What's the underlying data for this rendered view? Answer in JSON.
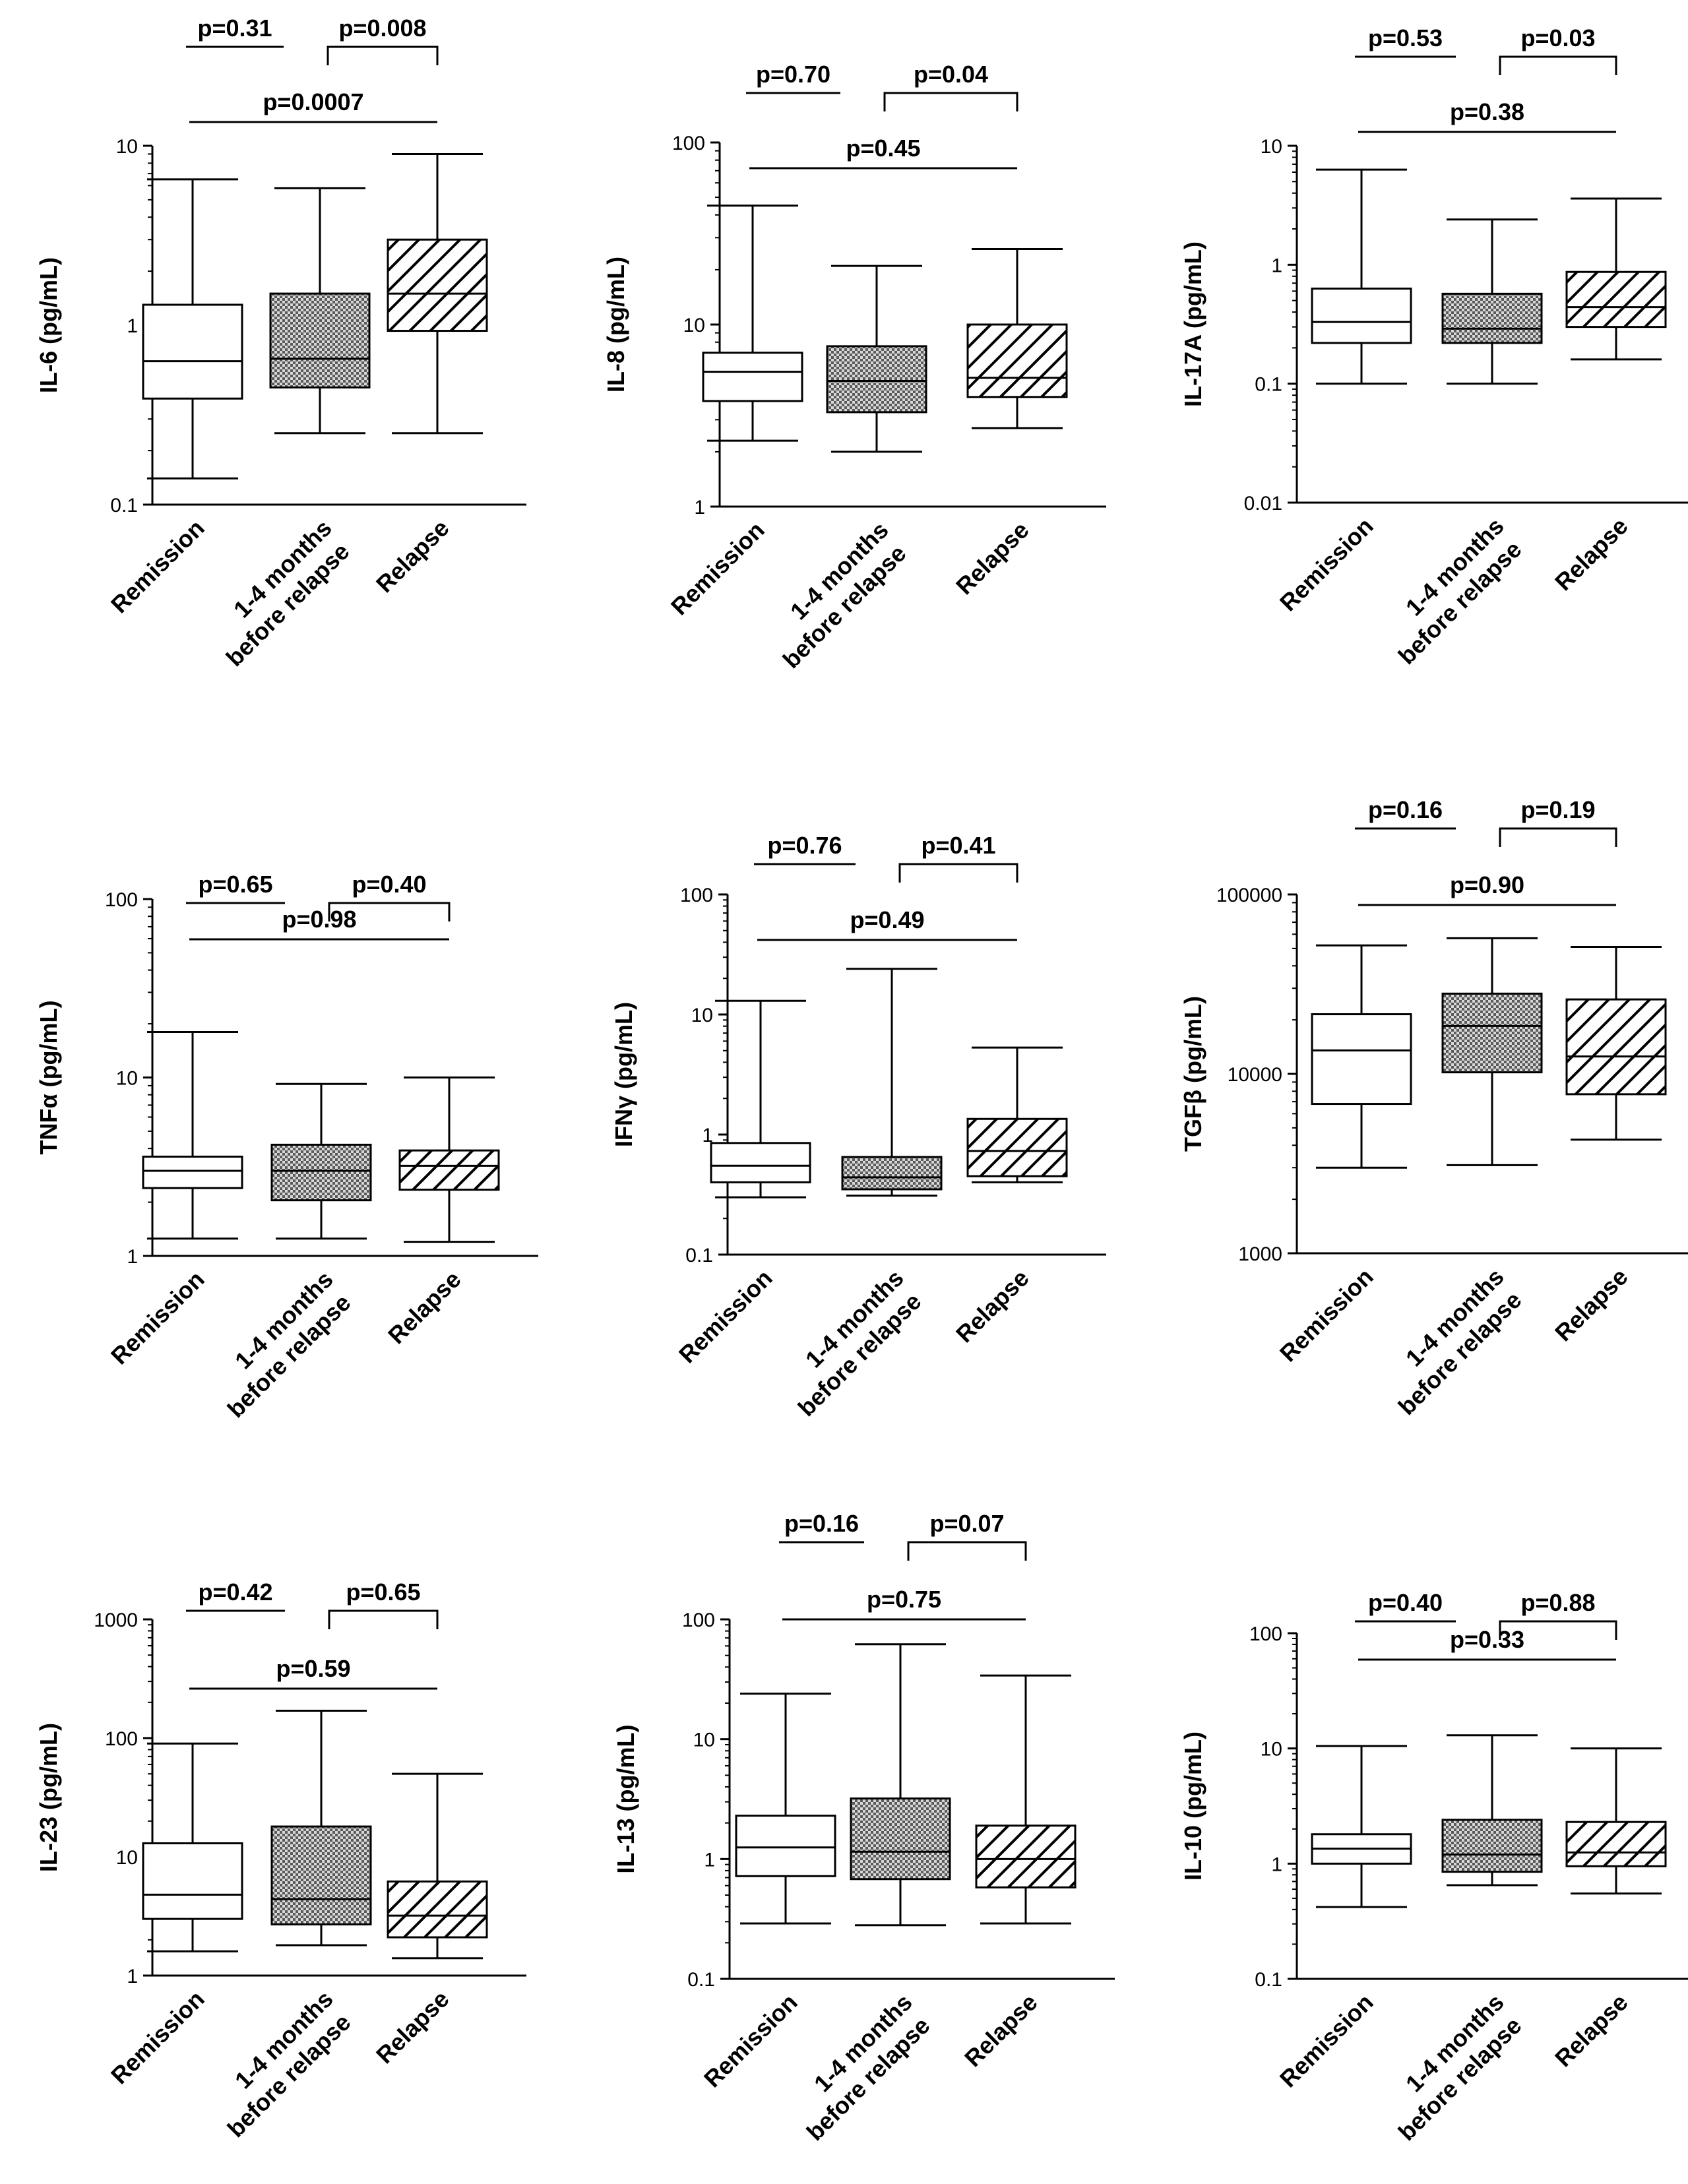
{
  "chart_data": [
    {
      "type": "box",
      "scale": "log",
      "ylabel": "IL-6 (pg/mL)",
      "ylim": [
        0.1,
        10
      ],
      "yticks": [
        "0.1",
        "1",
        "10"
      ],
      "categories": [
        "Remission",
        "1-4 months before relapse",
        "Relapse"
      ],
      "category_lines": [
        [
          "Remission"
        ],
        [
          "1-4 months",
          "before relapse"
        ],
        [
          "Relapse"
        ]
      ],
      "series": [
        {
          "name": "Remission",
          "pattern": "none",
          "min": 0.14,
          "q1": 0.39,
          "median": 0.63,
          "q3": 1.3,
          "max": 6.5
        },
        {
          "name": "1-4 months before relapse",
          "pattern": "checker",
          "min": 0.25,
          "q1": 0.45,
          "median": 0.65,
          "q3": 1.5,
          "max": 5.8
        },
        {
          "name": "Relapse",
          "pattern": "hatch",
          "min": 0.25,
          "q1": 0.93,
          "median": 1.5,
          "q3": 3.0,
          "max": 9.0
        }
      ],
      "comparisons": [
        {
          "label": "p=0.31",
          "from": 0,
          "to": 1
        },
        {
          "label": "p=0.008",
          "from": 1,
          "to": 2
        },
        {
          "label": "p=0.0007",
          "from": 0,
          "to": 2
        }
      ]
    },
    {
      "type": "box",
      "scale": "log",
      "ylabel": "IL-8 (pg/mL)",
      "ylim": [
        1,
        100
      ],
      "yticks": [
        "1",
        "10",
        "100"
      ],
      "categories": [
        "Remission",
        "1-4 months before relapse",
        "Relapse"
      ],
      "category_lines": [
        [
          "Remission"
        ],
        [
          "1-4 months",
          "before relapse"
        ],
        [
          "Relapse"
        ]
      ],
      "series": [
        {
          "name": "Remission",
          "pattern": "none",
          "min": 2.3,
          "q1": 3.8,
          "median": 5.5,
          "q3": 7.0,
          "max": 45
        },
        {
          "name": "1-4 months before relapse",
          "pattern": "checker",
          "min": 2.0,
          "q1": 3.3,
          "median": 4.9,
          "q3": 7.6,
          "max": 21
        },
        {
          "name": "Relapse",
          "pattern": "hatch",
          "min": 2.7,
          "q1": 4.0,
          "median": 5.1,
          "q3": 10,
          "max": 26
        }
      ],
      "comparisons": [
        {
          "label": "p=0.70",
          "from": 0,
          "to": 1
        },
        {
          "label": "p=0.04",
          "from": 1,
          "to": 2
        },
        {
          "label": "p=0.45",
          "from": 0,
          "to": 2
        }
      ]
    },
    {
      "type": "box",
      "scale": "log",
      "ylabel": "IL-17A (pg/mL)",
      "ylim": [
        0.01,
        10
      ],
      "yticks": [
        "0.01",
        "0.1",
        "1",
        "10"
      ],
      "categories": [
        "Remission",
        "1-4 months before relapse",
        "Relapse"
      ],
      "category_lines": [
        [
          "Remission"
        ],
        [
          "1-4 months",
          "before relapse"
        ],
        [
          "Relapse"
        ]
      ],
      "series": [
        {
          "name": "Remission",
          "pattern": "none",
          "min": 0.1,
          "q1": 0.22,
          "median": 0.33,
          "q3": 0.63,
          "max": 6.3
        },
        {
          "name": "1-4 months before relapse",
          "pattern": "checker",
          "min": 0.1,
          "q1": 0.22,
          "median": 0.29,
          "q3": 0.57,
          "max": 2.4
        },
        {
          "name": "Relapse",
          "pattern": "hatch",
          "min": 0.16,
          "q1": 0.3,
          "median": 0.44,
          "q3": 0.87,
          "max": 3.6
        }
      ],
      "comparisons": [
        {
          "label": "p=0.53",
          "from": 0,
          "to": 1
        },
        {
          "label": "p=0.03",
          "from": 1,
          "to": 2
        },
        {
          "label": "p=0.38",
          "from": 0,
          "to": 2
        }
      ]
    },
    {
      "type": "box",
      "scale": "log",
      "ylabel": "TNFα (pg/mL)",
      "ylim": [
        1,
        100
      ],
      "yticks": [
        "1",
        "10",
        "100"
      ],
      "categories": [
        "Remission",
        "1-4 months before relapse",
        "Relapse"
      ],
      "category_lines": [
        [
          "Remission"
        ],
        [
          "1-4 months",
          "before relapse"
        ],
        [
          "Relapse"
        ]
      ],
      "series": [
        {
          "name": "Remission",
          "pattern": "none",
          "min": 1.25,
          "q1": 2.4,
          "median": 3.0,
          "q3": 3.6,
          "max": 18
        },
        {
          "name": "1-4 months before relapse",
          "pattern": "checker",
          "min": 1.25,
          "q1": 2.05,
          "median": 3.0,
          "q3": 4.2,
          "max": 9.2
        },
        {
          "name": "Relapse",
          "pattern": "hatch",
          "min": 1.2,
          "q1": 2.35,
          "median": 3.2,
          "q3": 3.9,
          "max": 10
        }
      ],
      "comparisons": [
        {
          "label": "p=0.65",
          "from": 0,
          "to": 1
        },
        {
          "label": "p=0.40",
          "from": 1,
          "to": 2
        },
        {
          "label": "p=0.98",
          "from": 0,
          "to": 2
        }
      ]
    },
    {
      "type": "box",
      "scale": "log",
      "ylabel": "IFNγ (pg/mL)",
      "ylim": [
        0.1,
        100
      ],
      "yticks": [
        "0.1",
        "1",
        "10",
        "100"
      ],
      "categories": [
        "Remission",
        "1-4 months before relapse",
        "Relapse"
      ],
      "category_lines": [
        [
          "Remission"
        ],
        [
          "1-4 months",
          "before relapse"
        ],
        [
          "Relapse"
        ]
      ],
      "series": [
        {
          "name": "Remission",
          "pattern": "none",
          "min": 0.3,
          "q1": 0.4,
          "median": 0.55,
          "q3": 0.85,
          "max": 13
        },
        {
          "name": "1-4 months before relapse",
          "pattern": "checker",
          "min": 0.31,
          "q1": 0.35,
          "median": 0.44,
          "q3": 0.65,
          "max": 24
        },
        {
          "name": "Relapse",
          "pattern": "hatch",
          "min": 0.4,
          "q1": 0.45,
          "median": 0.73,
          "q3": 1.35,
          "max": 5.3
        }
      ],
      "comparisons": [
        {
          "label": "p=0.76",
          "from": 0,
          "to": 1
        },
        {
          "label": "p=0.41",
          "from": 1,
          "to": 2
        },
        {
          "label": "p=0.49",
          "from": 0,
          "to": 2
        }
      ]
    },
    {
      "type": "box",
      "scale": "log",
      "ylabel": "TGFβ (pg/mL)",
      "ylim": [
        1000,
        100000
      ],
      "yticks": [
        "1000",
        "10000",
        "100000"
      ],
      "categories": [
        "Remission",
        "1-4 months before relapse",
        "Relapse"
      ],
      "category_lines": [
        [
          "Remission"
        ],
        [
          "1-4 months",
          "before relapse"
        ],
        [
          "Relapse"
        ]
      ],
      "series": [
        {
          "name": "Remission",
          "pattern": "none",
          "min": 3000,
          "q1": 6800,
          "median": 13500,
          "q3": 21500,
          "max": 52000
        },
        {
          "name": "1-4 months before relapse",
          "pattern": "checker",
          "min": 3100,
          "q1": 10200,
          "median": 18500,
          "q3": 28000,
          "max": 57000
        },
        {
          "name": "Relapse",
          "pattern": "hatch",
          "min": 4300,
          "q1": 7700,
          "median": 12500,
          "q3": 26000,
          "max": 51000
        }
      ],
      "comparisons": [
        {
          "label": "p=0.16",
          "from": 0,
          "to": 1
        },
        {
          "label": "p=0.19",
          "from": 1,
          "to": 2
        },
        {
          "label": "p=0.90",
          "from": 0,
          "to": 2
        }
      ]
    },
    {
      "type": "box",
      "scale": "log",
      "ylabel": "IL-23 (pg/mL)",
      "ylim": [
        1,
        1000
      ],
      "yticks": [
        "1",
        "10",
        "100",
        "1000"
      ],
      "categories": [
        "Remission",
        "1-4 months before relapse",
        "Relapse"
      ],
      "category_lines": [
        [
          "Remission"
        ],
        [
          "1-4 months",
          "before relapse"
        ],
        [
          "Relapse"
        ]
      ],
      "series": [
        {
          "name": "Remission",
          "pattern": "none",
          "min": 1.6,
          "q1": 3.0,
          "median": 4.8,
          "q3": 13,
          "max": 90
        },
        {
          "name": "1-4 months before relapse",
          "pattern": "checker",
          "min": 1.8,
          "q1": 2.7,
          "median": 4.4,
          "q3": 18,
          "max": 170
        },
        {
          "name": "Relapse",
          "pattern": "hatch",
          "min": 1.4,
          "q1": 2.1,
          "median": 3.2,
          "q3": 6.2,
          "max": 50
        }
      ],
      "comparisons": [
        {
          "label": "p=0.42",
          "from": 0,
          "to": 1
        },
        {
          "label": "p=0.65",
          "from": 1,
          "to": 2
        },
        {
          "label": "p=0.59",
          "from": 0,
          "to": 2
        }
      ]
    },
    {
      "type": "box",
      "scale": "log",
      "ylabel": "IL-13 (pg/mL)",
      "ylim": [
        0.1,
        100
      ],
      "yticks": [
        "0.1",
        "1",
        "10",
        "100"
      ],
      "categories": [
        "Remission",
        "1-4 months before relapse",
        "Relapse"
      ],
      "category_lines": [
        [
          "Remission"
        ],
        [
          "1-4 months",
          "before relapse"
        ],
        [
          "Relapse"
        ]
      ],
      "series": [
        {
          "name": "Remission",
          "pattern": "none",
          "min": 0.29,
          "q1": 0.72,
          "median": 1.25,
          "q3": 2.3,
          "max": 24
        },
        {
          "name": "1-4 months before relapse",
          "pattern": "checker",
          "min": 0.28,
          "q1": 0.68,
          "median": 1.15,
          "q3": 3.2,
          "max": 62
        },
        {
          "name": "Relapse",
          "pattern": "hatch",
          "min": 0.29,
          "q1": 0.58,
          "median": 1.0,
          "q3": 1.9,
          "max": 34
        }
      ],
      "comparisons": [
        {
          "label": "p=0.16",
          "from": 0,
          "to": 1
        },
        {
          "label": "p=0.07",
          "from": 1,
          "to": 2
        },
        {
          "label": "p=0.75",
          "from": 0,
          "to": 2
        }
      ]
    },
    {
      "type": "box",
      "scale": "log",
      "ylabel": "IL-10 (pg/mL)",
      "ylim": [
        0.1,
        100
      ],
      "yticks": [
        "0.1",
        "1",
        "10",
        "100"
      ],
      "categories": [
        "Remission",
        "1-4 months before relapse",
        "Relapse"
      ],
      "category_lines": [
        [
          "Remission"
        ],
        [
          "1-4 months",
          "before relapse"
        ],
        [
          "Relapse"
        ]
      ],
      "series": [
        {
          "name": "Remission",
          "pattern": "none",
          "min": 0.42,
          "q1": 1.0,
          "median": 1.35,
          "q3": 1.8,
          "max": 10.5
        },
        {
          "name": "1-4 months before relapse",
          "pattern": "checker",
          "min": 0.65,
          "q1": 0.85,
          "median": 1.2,
          "q3": 2.4,
          "max": 13
        },
        {
          "name": "Relapse",
          "pattern": "hatch",
          "min": 0.55,
          "q1": 0.95,
          "median": 1.25,
          "q3": 2.3,
          "max": 10
        }
      ],
      "comparisons": [
        {
          "label": "p=0.40",
          "from": 0,
          "to": 1
        },
        {
          "label": "p=0.88",
          "from": 1,
          "to": 2
        },
        {
          "label": "p=0.33",
          "from": 0,
          "to": 2
        }
      ]
    }
  ]
}
